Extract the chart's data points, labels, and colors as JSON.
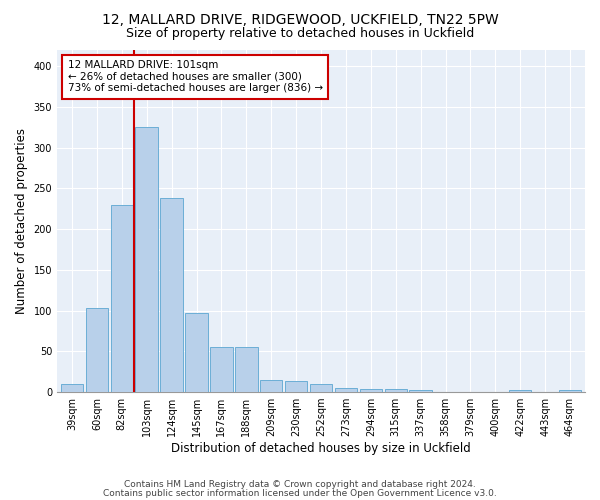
{
  "title1": "12, MALLARD DRIVE, RIDGEWOOD, UCKFIELD, TN22 5PW",
  "title2": "Size of property relative to detached houses in Uckfield",
  "xlabel": "Distribution of detached houses by size in Uckfield",
  "ylabel": "Number of detached properties",
  "categories": [
    "39sqm",
    "60sqm",
    "82sqm",
    "103sqm",
    "124sqm",
    "145sqm",
    "167sqm",
    "188sqm",
    "209sqm",
    "230sqm",
    "252sqm",
    "273sqm",
    "294sqm",
    "315sqm",
    "337sqm",
    "358sqm",
    "379sqm",
    "400sqm",
    "422sqm",
    "443sqm",
    "464sqm"
  ],
  "values": [
    10,
    103,
    230,
    325,
    238,
    97,
    55,
    55,
    15,
    14,
    10,
    5,
    4,
    4,
    3,
    0,
    0,
    0,
    3,
    0,
    3
  ],
  "bar_color": "#B8D0EA",
  "bar_edge_color": "#6BAED6",
  "vline_color": "#CC0000",
  "annotation_line1": "12 MALLARD DRIVE: 101sqm",
  "annotation_line2": "← 26% of detached houses are smaller (300)",
  "annotation_line3": "73% of semi-detached houses are larger (836) →",
  "annotation_box_color": "white",
  "annotation_box_edge": "#CC0000",
  "footer1": "Contains HM Land Registry data © Crown copyright and database right 2024.",
  "footer2": "Contains public sector information licensed under the Open Government Licence v3.0.",
  "ylim": [
    0,
    420
  ],
  "yticks": [
    0,
    50,
    100,
    150,
    200,
    250,
    300,
    350,
    400
  ],
  "background_color": "#E8EFF8",
  "title_fontsize": 10,
  "subtitle_fontsize": 9,
  "axis_label_fontsize": 8.5,
  "tick_fontsize": 7,
  "footer_fontsize": 6.5,
  "annot_fontsize": 7.5
}
